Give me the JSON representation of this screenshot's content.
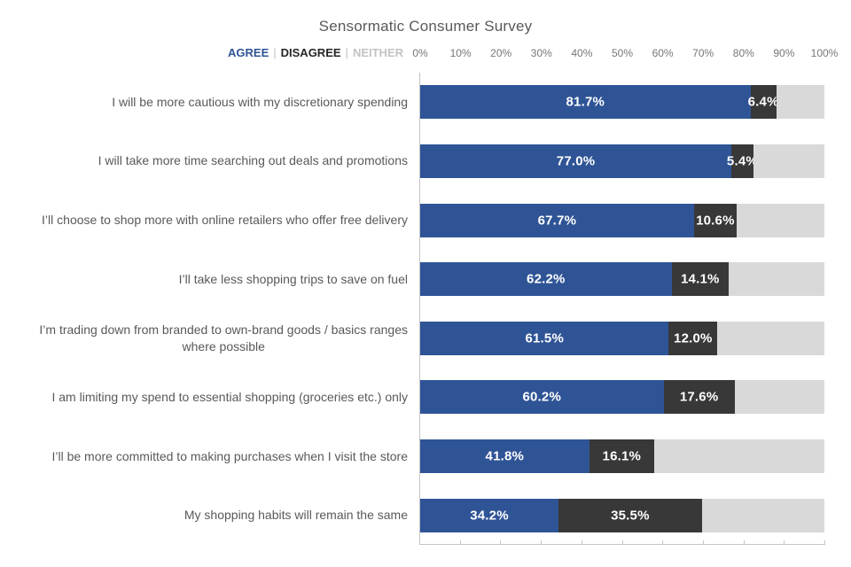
{
  "page": {
    "background": "#FFFFFF"
  },
  "chart_data": {
    "type": "bar",
    "variant": "horizontal-stacked-100",
    "title": "Sensormatic Consumer Survey",
    "categories": [
      "I will be more cautious with my discretionary spending",
      "I will take more time searching out deals and promotions",
      "I’ll choose to shop more with online retailers who offer free delivery",
      "I’ll take less shopping trips to save on fuel",
      "I’m trading down from branded to own-brand goods / basics ranges\nwhere possible",
      "I am limiting my spend to essential shopping (groceries etc.) only",
      "I’ll be more committed to making purchases when I visit the store",
      "My shopping habits will remain the same"
    ],
    "series": [
      {
        "name": "AGREE",
        "color": "#2F5496",
        "show_value_labels": true,
        "values": [
          81.7,
          77.0,
          67.7,
          62.2,
          61.5,
          60.2,
          41.8,
          34.2
        ]
      },
      {
        "name": "DISAGREE",
        "color": "#383838",
        "show_value_labels": true,
        "values": [
          6.4,
          5.4,
          10.6,
          14.1,
          12.0,
          17.6,
          16.1,
          35.5
        ]
      },
      {
        "name": "NEITHER",
        "color": "#D9D9D9",
        "show_value_labels": false,
        "values": [
          11.9,
          17.6,
          21.7,
          23.7,
          26.5,
          22.2,
          42.1,
          30.3
        ]
      }
    ],
    "x_ticks": [
      "0%",
      "10%",
      "20%",
      "30%",
      "40%",
      "50%",
      "60%",
      "70%",
      "80%",
      "90%",
      "100%"
    ],
    "xlim": [
      0,
      100
    ],
    "value_label_format": "one-decimal-percent",
    "gridlines": false,
    "legend_position": "top, left of plot area"
  },
  "legend": {
    "items": [
      {
        "label": "AGREE",
        "color": "#2F5496"
      },
      {
        "label": "DISAGREE",
        "color": "#262626"
      },
      {
        "label": "NEITHER",
        "color": "#C3C3C3"
      }
    ],
    "separator": "|",
    "separator_color": "#BFBFBF"
  },
  "colors": {
    "title": "#595959",
    "category_label": "#595959",
    "tick_label": "#767676",
    "axis_line": "#C4C4C4",
    "value_label": "#FFFFFF"
  }
}
